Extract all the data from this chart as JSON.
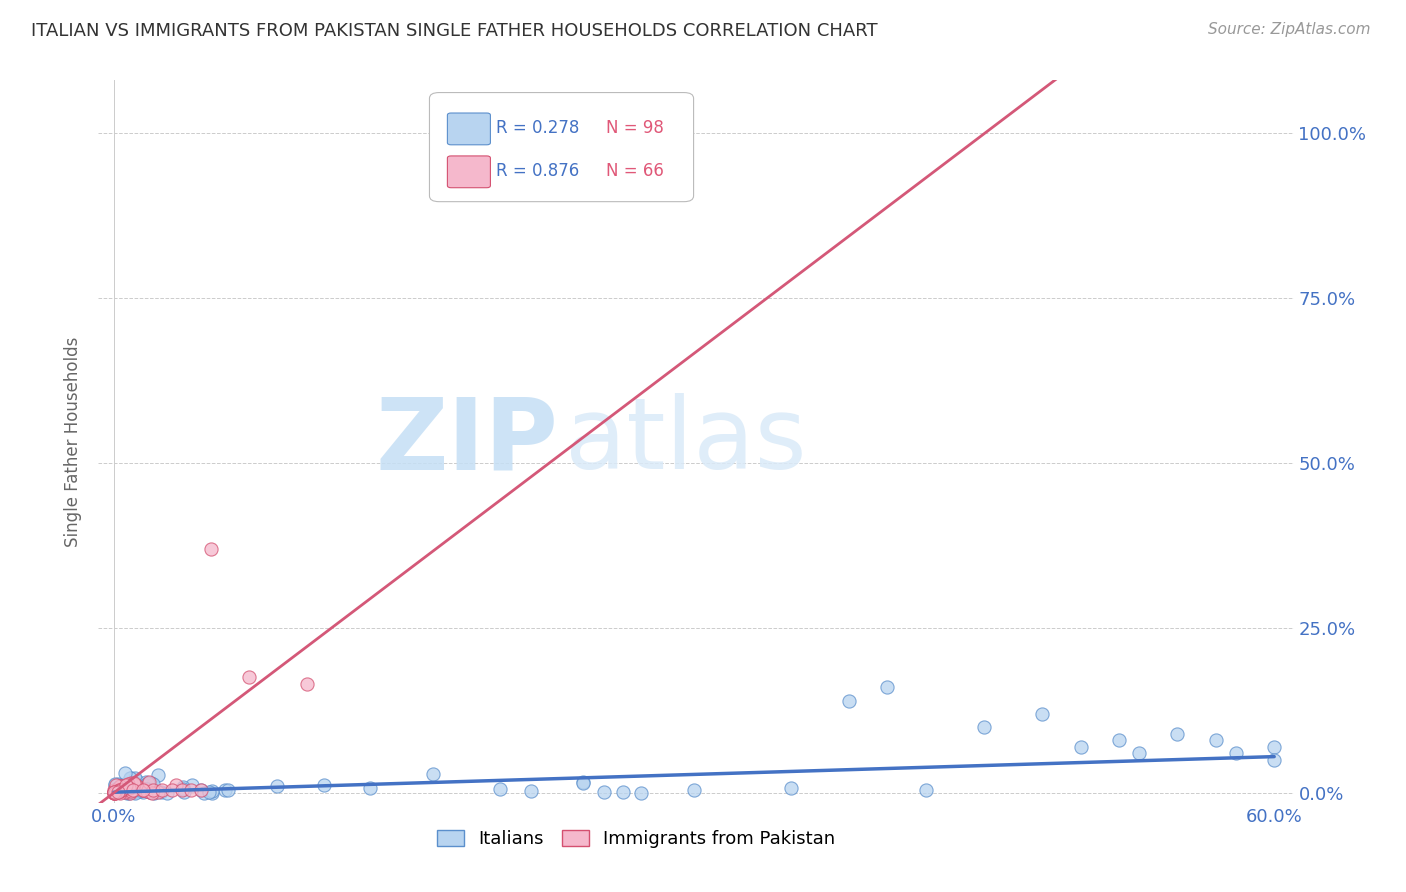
{
  "title": "ITALIAN VS IMMIGRANTS FROM PAKISTAN SINGLE FATHER HOUSEHOLDS CORRELATION CHART",
  "source": "Source: ZipAtlas.com",
  "ylabel": "Single Father Households",
  "ytick_vals": [
    0.0,
    0.25,
    0.5,
    0.75,
    1.0
  ],
  "ytick_labels": [
    "0.0%",
    "25.0%",
    "50.0%",
    "75.0%",
    "100.0%"
  ],
  "xlim": [
    0.0,
    0.6
  ],
  "ylim": [
    0.0,
    1.05
  ],
  "legend_r1": "R = 0.278",
  "legend_n1": "N = 98",
  "legend_r2": "R = 0.876",
  "legend_n2": "N = 66",
  "color_italian_face": "#b8d4f0",
  "color_italian_edge": "#5b8fcc",
  "color_pakistan_face": "#f5b8cc",
  "color_pakistan_edge": "#d45070",
  "color_line_italian": "#4472c4",
  "color_line_pakistan": "#d45878",
  "watermark_zip": "ZIP",
  "watermark_atlas": "atlas",
  "title_fontsize": 13,
  "source_fontsize": 11,
  "tick_fontsize": 13,
  "legend_fontsize": 13
}
